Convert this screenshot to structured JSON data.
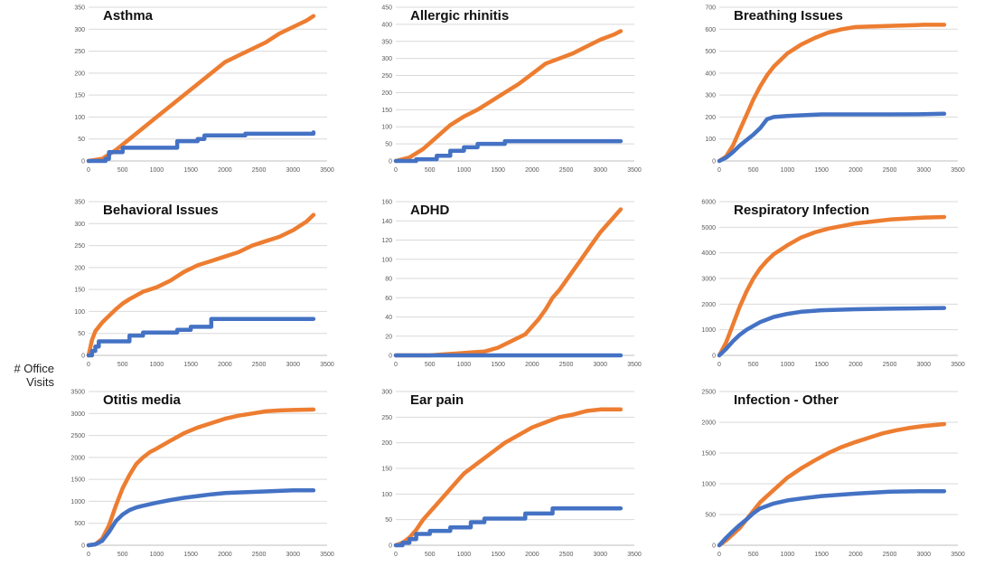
{
  "y_axis_label": "# Office\nVisits",
  "colors": {
    "orange": "#ED7D31",
    "blue": "#4472C4"
  },
  "chart_data": [
    {
      "type": "line",
      "title": "Asthma",
      "xlim": [
        0,
        3500
      ],
      "ylim": [
        0,
        350
      ],
      "x_ticks": [
        0,
        500,
        1000,
        1500,
        2000,
        2500,
        3000,
        3500
      ],
      "y_ticks": [
        0,
        50,
        100,
        150,
        200,
        250,
        300,
        350
      ],
      "series": [
        {
          "color": "#ED7D31",
          "x": [
            0,
            200,
            400,
            600,
            800,
            1000,
            1200,
            1400,
            1600,
            1800,
            2000,
            2200,
            2400,
            2600,
            2800,
            3000,
            3200,
            3300
          ],
          "y": [
            0,
            5,
            25,
            50,
            75,
            100,
            125,
            150,
            175,
            200,
            225,
            240,
            255,
            270,
            290,
            305,
            320,
            330
          ]
        },
        {
          "color": "#4472C4",
          "step": true,
          "x": [
            0,
            250,
            300,
            500,
            1300,
            1600,
            1700,
            2300,
            3300
          ],
          "y": [
            0,
            5,
            20,
            30,
            45,
            50,
            58,
            62,
            65
          ]
        }
      ]
    },
    {
      "type": "line",
      "title": "Allergic rhinitis",
      "xlim": [
        0,
        3500
      ],
      "ylim": [
        0,
        450
      ],
      "x_ticks": [
        0,
        500,
        1000,
        1500,
        2000,
        2500,
        3000,
        3500
      ],
      "y_ticks": [
        0,
        50,
        100,
        150,
        200,
        250,
        300,
        350,
        400,
        450
      ],
      "series": [
        {
          "color": "#ED7D31",
          "x": [
            0,
            200,
            400,
            600,
            800,
            1000,
            1200,
            1400,
            1600,
            1800,
            2000,
            2200,
            2400,
            2600,
            2800,
            3000,
            3200,
            3300
          ],
          "y": [
            0,
            10,
            35,
            70,
            105,
            130,
            150,
            175,
            200,
            225,
            255,
            285,
            300,
            315,
            335,
            355,
            370,
            380
          ]
        },
        {
          "color": "#4472C4",
          "step": true,
          "x": [
            0,
            300,
            600,
            800,
            1000,
            1200,
            1600,
            3300
          ],
          "y": [
            0,
            5,
            15,
            30,
            40,
            50,
            58,
            58
          ]
        }
      ]
    },
    {
      "type": "line",
      "title": "Breathing Issues",
      "xlim": [
        0,
        3500
      ],
      "ylim": [
        0,
        700
      ],
      "x_ticks": [
        0,
        500,
        1000,
        1500,
        2000,
        2500,
        3000,
        3500
      ],
      "y_ticks": [
        0,
        100,
        200,
        300,
        400,
        500,
        600,
        700
      ],
      "series": [
        {
          "color": "#ED7D31",
          "x": [
            0,
            100,
            200,
            300,
            400,
            500,
            600,
            700,
            800,
            1000,
            1200,
            1400,
            1600,
            1800,
            2000,
            2500,
            3000,
            3300
          ],
          "y": [
            0,
            20,
            70,
            140,
            210,
            280,
            340,
            390,
            430,
            490,
            530,
            560,
            585,
            600,
            610,
            615,
            620,
            620
          ]
        },
        {
          "color": "#4472C4",
          "x": [
            0,
            100,
            200,
            300,
            400,
            500,
            600,
            700,
            800,
            1000,
            1200,
            1500,
            2000,
            2500,
            3000,
            3300
          ],
          "y": [
            0,
            15,
            40,
            70,
            95,
            120,
            150,
            190,
            200,
            205,
            208,
            212,
            212,
            212,
            213,
            215
          ]
        }
      ]
    },
    {
      "type": "line",
      "title": "Behavioral Issues",
      "xlim": [
        0,
        3500
      ],
      "ylim": [
        0,
        350
      ],
      "x_ticks": [
        0,
        500,
        1000,
        1500,
        2000,
        2500,
        3000,
        3500
      ],
      "y_ticks": [
        0,
        50,
        100,
        150,
        200,
        250,
        300,
        350
      ],
      "series": [
        {
          "color": "#ED7D31",
          "x": [
            0,
            50,
            100,
            200,
            300,
            400,
            500,
            600,
            800,
            1000,
            1200,
            1400,
            1600,
            1800,
            2000,
            2200,
            2400,
            2600,
            2800,
            3000,
            3200,
            3300
          ],
          "y": [
            0,
            35,
            55,
            75,
            90,
            105,
            118,
            128,
            145,
            155,
            170,
            190,
            205,
            215,
            225,
            235,
            250,
            260,
            270,
            285,
            305,
            320
          ]
        },
        {
          "color": "#4472C4",
          "step": true,
          "x": [
            0,
            50,
            100,
            150,
            600,
            800,
            1300,
            1500,
            1800,
            3300
          ],
          "y": [
            0,
            10,
            20,
            32,
            45,
            52,
            58,
            65,
            83,
            83
          ]
        }
      ]
    },
    {
      "type": "line",
      "title": "ADHD",
      "xlim": [
        0,
        3500
      ],
      "ylim": [
        0,
        160
      ],
      "x_ticks": [
        0,
        500,
        1000,
        1500,
        2000,
        2500,
        3000,
        3500
      ],
      "y_ticks": [
        0,
        20,
        40,
        60,
        80,
        100,
        120,
        140,
        160
      ],
      "series": [
        {
          "color": "#ED7D31",
          "x": [
            0,
            500,
            700,
            900,
            1100,
            1300,
            1500,
            1700,
            1900,
            2000,
            2100,
            2200,
            2300,
            2400,
            2500,
            2600,
            2700,
            2800,
            2900,
            3000,
            3100,
            3200,
            3300
          ],
          "y": [
            0,
            0,
            1,
            2,
            3,
            4,
            8,
            15,
            22,
            30,
            38,
            48,
            60,
            68,
            78,
            88,
            98,
            108,
            118,
            128,
            136,
            144,
            152
          ]
        },
        {
          "color": "#4472C4",
          "x": [
            0,
            3300
          ],
          "y": [
            0,
            0
          ]
        }
      ]
    },
    {
      "type": "line",
      "title": "Respiratory Infection",
      "xlim": [
        0,
        3500
      ],
      "ylim": [
        0,
        6000
      ],
      "x_ticks": [
        0,
        500,
        1000,
        1500,
        2000,
        2500,
        3000,
        3500
      ],
      "y_ticks": [
        0,
        1000,
        2000,
        3000,
        4000,
        5000,
        6000
      ],
      "series": [
        {
          "color": "#ED7D31",
          "x": [
            0,
            100,
            200,
            300,
            400,
            500,
            600,
            700,
            800,
            1000,
            1200,
            1400,
            1600,
            1800,
            2000,
            2500,
            3000,
            3300
          ],
          "y": [
            0,
            500,
            1200,
            1900,
            2500,
            3000,
            3400,
            3700,
            3950,
            4300,
            4600,
            4800,
            4950,
            5050,
            5150,
            5300,
            5380,
            5400
          ]
        },
        {
          "color": "#4472C4",
          "x": [
            0,
            100,
            200,
            300,
            400,
            500,
            600,
            800,
            1000,
            1200,
            1500,
            2000,
            2500,
            3000,
            3300
          ],
          "y": [
            0,
            250,
            550,
            800,
            1000,
            1150,
            1300,
            1500,
            1620,
            1700,
            1760,
            1800,
            1820,
            1840,
            1850
          ]
        }
      ]
    },
    {
      "type": "line",
      "title": "Otitis media",
      "xlim": [
        0,
        3500
      ],
      "ylim": [
        0,
        3500
      ],
      "x_ticks": [
        0,
        500,
        1000,
        1500,
        2000,
        2500,
        3000,
        3500
      ],
      "y_ticks": [
        0,
        500,
        1000,
        1500,
        2000,
        2500,
        3000,
        3500
      ],
      "series": [
        {
          "color": "#ED7D31",
          "x": [
            0,
            100,
            200,
            300,
            400,
            500,
            600,
            700,
            800,
            900,
            1000,
            1200,
            1400,
            1600,
            1800,
            2000,
            2200,
            2400,
            2600,
            2800,
            3000,
            3300
          ],
          "y": [
            0,
            20,
            150,
            450,
            900,
            1300,
            1600,
            1850,
            2000,
            2120,
            2200,
            2380,
            2550,
            2680,
            2780,
            2880,
            2950,
            3000,
            3050,
            3070,
            3080,
            3090
          ]
        },
        {
          "color": "#4472C4",
          "x": [
            0,
            100,
            200,
            300,
            400,
            500,
            600,
            700,
            800,
            1000,
            1200,
            1400,
            1600,
            1800,
            2000,
            2500,
            3000,
            3300
          ],
          "y": [
            0,
            20,
            100,
            300,
            550,
            700,
            800,
            860,
            900,
            970,
            1030,
            1080,
            1120,
            1160,
            1190,
            1220,
            1250,
            1250
          ]
        }
      ]
    },
    {
      "type": "line",
      "title": "Ear pain",
      "xlim": [
        0,
        3500
      ],
      "ylim": [
        0,
        300
      ],
      "x_ticks": [
        0,
        500,
        1000,
        1500,
        2000,
        2500,
        3000,
        3500
      ],
      "y_ticks": [
        0,
        50,
        100,
        150,
        200,
        250,
        300
      ],
      "series": [
        {
          "color": "#ED7D31",
          "x": [
            0,
            100,
            200,
            300,
            400,
            500,
            600,
            800,
            1000,
            1200,
            1400,
            1600,
            1800,
            2000,
            2200,
            2400,
            2600,
            2800,
            3000,
            3300
          ],
          "y": [
            0,
            5,
            15,
            30,
            50,
            65,
            80,
            110,
            140,
            160,
            180,
            200,
            215,
            230,
            240,
            250,
            255,
            262,
            265,
            265
          ]
        },
        {
          "color": "#4472C4",
          "step": true,
          "x": [
            0,
            100,
            200,
            300,
            500,
            800,
            1100,
            1300,
            1900,
            2300,
            3300
          ],
          "y": [
            0,
            5,
            12,
            22,
            28,
            35,
            45,
            52,
            62,
            72,
            72
          ]
        }
      ]
    },
    {
      "type": "line",
      "title": "Infection - Other",
      "xlim": [
        0,
        3500
      ],
      "ylim": [
        0,
        2500
      ],
      "x_ticks": [
        0,
        500,
        1000,
        1500,
        2000,
        2500,
        3000,
        3500
      ],
      "y_ticks": [
        0,
        500,
        1000,
        1500,
        2000,
        2500
      ],
      "series": [
        {
          "color": "#ED7D31",
          "x": [
            0,
            100,
            200,
            300,
            400,
            500,
            600,
            700,
            800,
            1000,
            1200,
            1400,
            1600,
            1800,
            2000,
            2200,
            2400,
            2600,
            2800,
            3000,
            3300
          ],
          "y": [
            0,
            80,
            180,
            280,
            420,
            560,
            700,
            800,
            900,
            1100,
            1250,
            1380,
            1500,
            1600,
            1680,
            1750,
            1820,
            1870,
            1910,
            1940,
            1970
          ]
        },
        {
          "color": "#4472C4",
          "x": [
            0,
            100,
            200,
            300,
            400,
            500,
            600,
            800,
            1000,
            1200,
            1500,
            2000,
            2500,
            3000,
            3300
          ],
          "y": [
            0,
            120,
            230,
            330,
            420,
            520,
            600,
            680,
            730,
            760,
            800,
            840,
            870,
            880,
            880
          ]
        }
      ]
    }
  ]
}
